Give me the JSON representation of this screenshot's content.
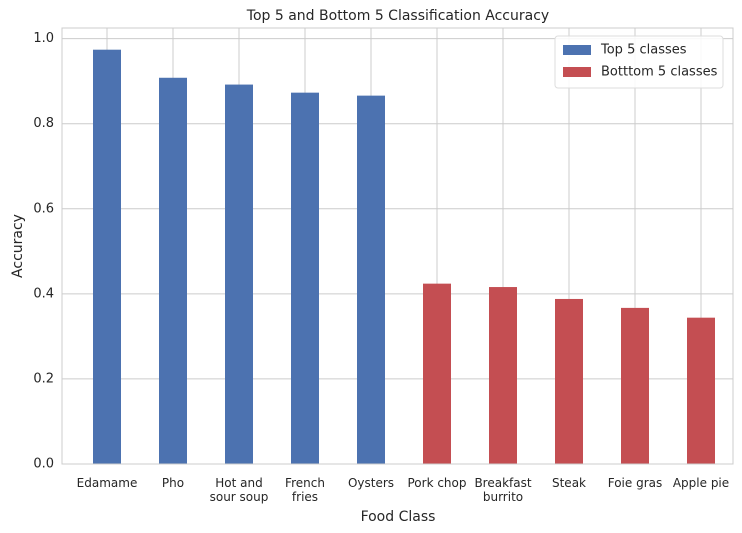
{
  "chart_data": {
    "type": "bar",
    "title": "Top 5 and Bottom 5 Classification Accuracy",
    "x_label": "Food Class",
    "y_label": "Accuracy",
    "categories": [
      "Edamame",
      "Pho",
      "Hot and\nsour soup",
      "French\nfries",
      "Oysters",
      "Pork chop",
      "Breakfast\nburrito",
      "Steak",
      "Foie gras",
      "Apple pie"
    ],
    "series": [
      {
        "name": "Top 5 classes",
        "color": "#4c72b0",
        "values": [
          0.974,
          0.908,
          0.892,
          0.873,
          0.866,
          null,
          null,
          null,
          null,
          null
        ]
      },
      {
        "name": "Botttom 5 classes",
        "color": "#c44e52",
        "values": [
          null,
          null,
          null,
          null,
          null,
          0.424,
          0.416,
          0.388,
          0.367,
          0.344
        ]
      }
    ],
    "ylim": [
      0,
      1.025
    ],
    "yticks": [
      {
        "value": 0,
        "label": "0.0"
      },
      0.2,
      0.4,
      0.6,
      0.8,
      {
        "value": 1,
        "label": "1.0"
      }
    ],
    "grid": true,
    "legend": "upper right"
  }
}
